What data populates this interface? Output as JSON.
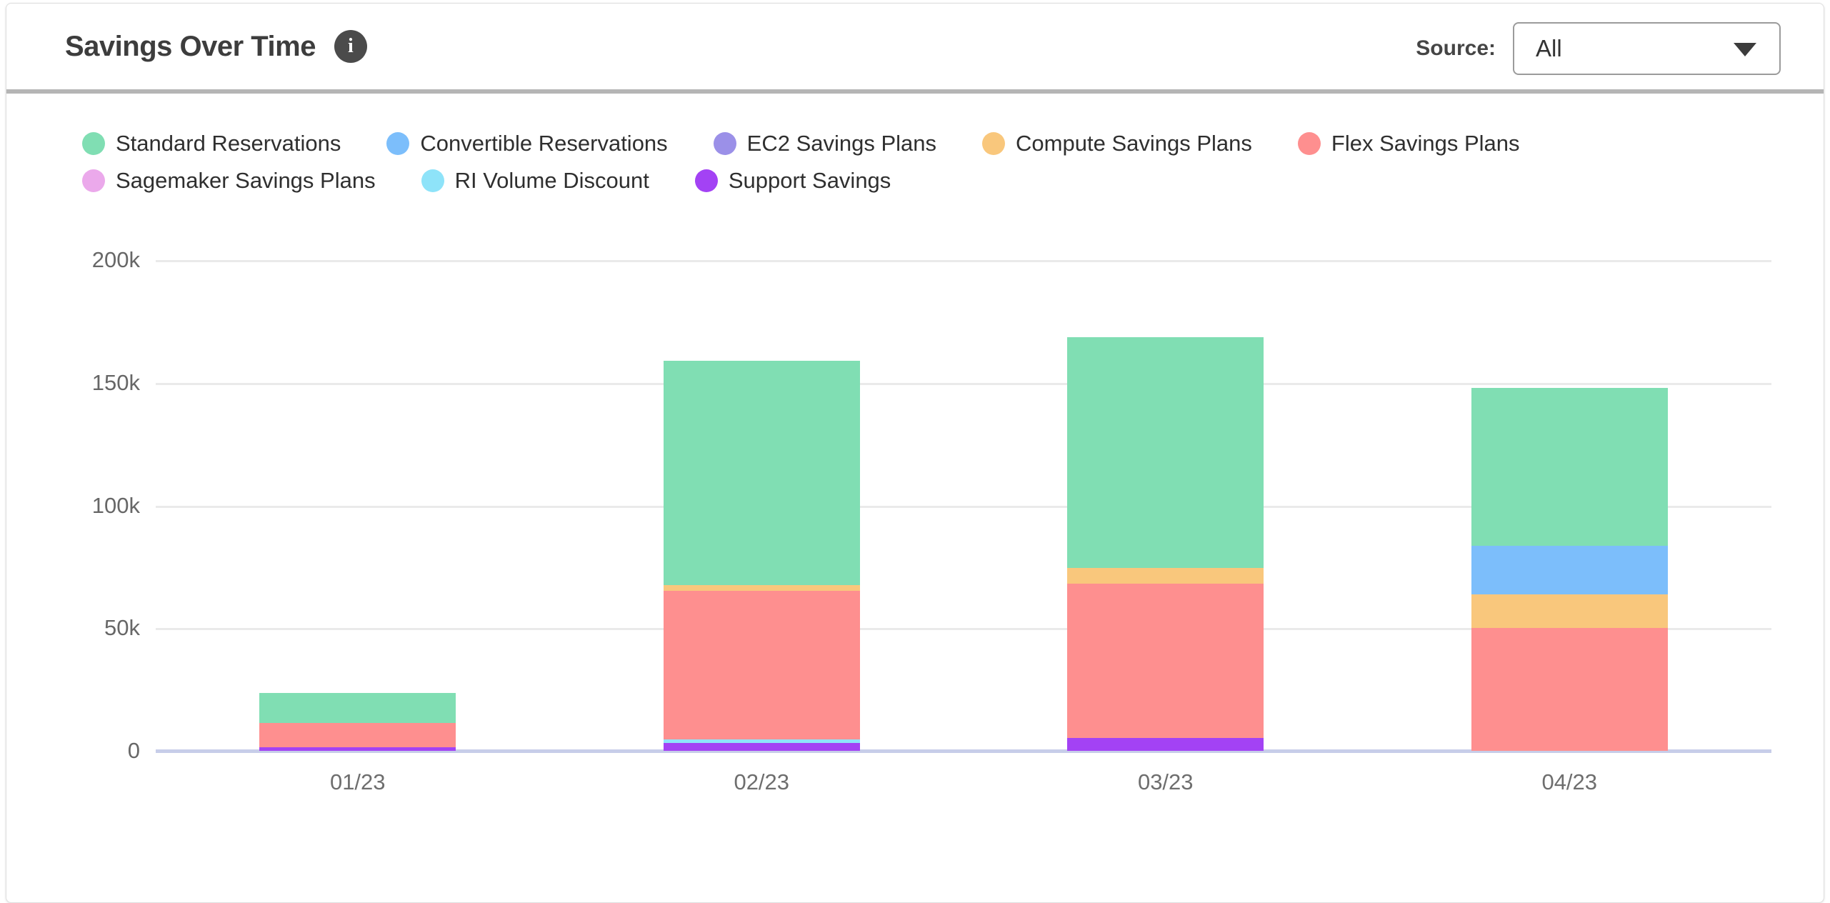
{
  "header": {
    "title": "Savings Over Time",
    "info_icon_glyph": "i",
    "source_label": "Source:",
    "source_value": "All"
  },
  "chart_data": {
    "type": "bar",
    "stacked": true,
    "title": "Savings Over Time",
    "xlabel": "",
    "ylabel": "",
    "grid": true,
    "legend_position": "top",
    "ylim": [
      0,
      200000
    ],
    "yticks": [
      {
        "value": 0,
        "label": "0"
      },
      {
        "value": 50000,
        "label": "50k"
      },
      {
        "value": 100000,
        "label": "100k"
      },
      {
        "value": 150000,
        "label": "150k"
      },
      {
        "value": 200000,
        "label": "200k"
      }
    ],
    "categories": [
      "01/23",
      "02/23",
      "03/23",
      "04/23"
    ],
    "series": [
      {
        "name": "Standard Reservations",
        "color": "#80deb3",
        "values": [
          12200,
          91500,
          94000,
          64500
        ]
      },
      {
        "name": "Convertible Reservations",
        "color": "#7cbefb",
        "values": [
          0,
          0,
          0,
          19800
        ]
      },
      {
        "name": "EC2 Savings Plans",
        "color": "#9b90e8",
        "values": [
          0,
          0,
          0,
          0
        ]
      },
      {
        "name": "Compute Savings Plans",
        "color": "#f9c77c",
        "values": [
          0,
          2300,
          6400,
          13700
        ]
      },
      {
        "name": "Flex Savings Plans",
        "color": "#fe8f8f",
        "values": [
          9900,
          60500,
          63000,
          50000
        ]
      },
      {
        "name": "Sagemaker Savings Plans",
        "color": "#eba9eb",
        "values": [
          0,
          0,
          0,
          0
        ]
      },
      {
        "name": "RI Volume Discount",
        "color": "#8ee3f9",
        "values": [
          0,
          1500,
          0,
          0
        ]
      },
      {
        "name": "Support Savings",
        "color": "#a342f4",
        "values": [
          1400,
          3200,
          5200,
          0
        ]
      }
    ]
  },
  "colors": {
    "axis_line": "#c7cde9",
    "gridline": "#eaeaea",
    "header_divider": "#b5b5b5"
  }
}
